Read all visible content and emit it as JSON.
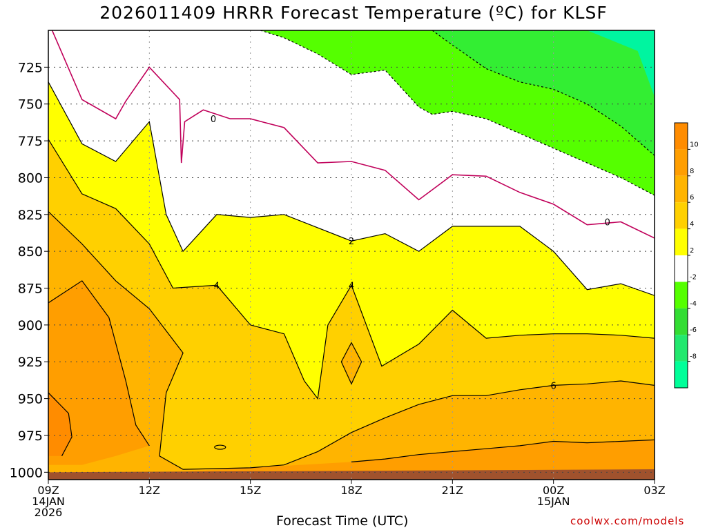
{
  "title": "2026011409 HRRR Forecast Temperature (ºC) for KLSF",
  "credit": "coolwx.com/models",
  "chart_data": {
    "type": "contour",
    "title": "2026011409 HRRR Forecast Temperature (ºC) for KLSF",
    "xlabel": "Forecast Time (UTC)",
    "ylabel": "",
    "x_range_hours": [
      0,
      18
    ],
    "y_range_hpa": [
      1005,
      700
    ],
    "y_ticks": [
      725,
      750,
      775,
      800,
      825,
      850,
      875,
      900,
      925,
      950,
      975,
      1000
    ],
    "x_ticks": [
      {
        "hour": 0,
        "lines": [
          "09Z",
          "14JAN",
          "2026"
        ]
      },
      {
        "hour": 3,
        "lines": [
          "12Z"
        ]
      },
      {
        "hour": 6,
        "lines": [
          "15Z"
        ]
      },
      {
        "hour": 9,
        "lines": [
          "18Z"
        ]
      },
      {
        "hour": 12,
        "lines": [
          "21Z"
        ]
      },
      {
        "hour": 15,
        "lines": [
          "00Z",
          "15JAN"
        ]
      },
      {
        "hour": 18,
        "lines": [
          "03Z"
        ]
      }
    ],
    "grid": true,
    "colorbar": {
      "labels": [
        10,
        8,
        6,
        4,
        2,
        -2,
        -4,
        -6,
        -8
      ],
      "colors": [
        "#ff8c00",
        "#ff9e00",
        "#ffb400",
        "#ffd000",
        "#ffff00",
        "#ffffff",
        "#55ff00",
        "#33dd33",
        "#22e86e",
        "#00ff99"
      ]
    },
    "contour_labels": [
      {
        "text": "0",
        "t": 4.9,
        "p": 760
      },
      {
        "text": "0",
        "t": 16.6,
        "p": 830
      },
      {
        "text": "2",
        "t": 9.0,
        "p": 843
      },
      {
        "text": "4",
        "t": 5.0,
        "p": 873
      },
      {
        "text": "4",
        "t": 9.0,
        "p": 873
      },
      {
        "text": "6",
        "t": 15.0,
        "p": 941
      }
    ],
    "isolines": {
      "zero": [
        [
          0,
          694
        ],
        [
          1,
          747
        ],
        [
          2,
          760
        ],
        [
          2.3,
          748
        ],
        [
          3,
          725
        ],
        [
          3.9,
          747
        ],
        [
          3.95,
          790
        ],
        [
          4.05,
          762
        ],
        [
          4.6,
          754
        ],
        [
          5.4,
          760
        ],
        [
          6,
          760
        ],
        [
          7,
          766
        ],
        [
          8,
          790
        ],
        [
          9,
          789
        ],
        [
          10,
          795
        ],
        [
          11,
          815
        ],
        [
          12,
          798
        ],
        [
          13,
          799
        ],
        [
          14,
          810
        ],
        [
          15,
          818
        ],
        [
          16,
          832
        ],
        [
          17,
          830
        ],
        [
          18,
          841
        ]
      ],
      "two": [
        [
          0,
          735
        ],
        [
          1,
          777
        ],
        [
          2,
          789
        ],
        [
          3,
          762
        ],
        [
          3.5,
          825
        ],
        [
          4,
          850
        ],
        [
          5,
          825
        ],
        [
          6,
          827
        ],
        [
          7,
          825
        ],
        [
          9,
          843
        ],
        [
          10,
          838
        ],
        [
          11,
          850
        ],
        [
          12,
          833
        ],
        [
          14,
          833
        ],
        [
          15,
          850
        ],
        [
          16,
          876
        ],
        [
          17,
          872
        ],
        [
          18,
          880
        ]
      ],
      "four": [
        [
          0,
          774
        ],
        [
          1,
          811
        ],
        [
          2,
          821
        ],
        [
          3,
          845
        ],
        [
          3.7,
          875
        ],
        [
          5,
          873
        ],
        [
          6,
          900
        ],
        [
          7,
          906
        ],
        [
          7.6,
          938
        ],
        [
          8,
          950
        ],
        [
          8.3,
          900
        ],
        [
          9,
          873
        ],
        [
          9.9,
          928
        ],
        [
          11,
          913
        ],
        [
          12,
          890
        ],
        [
          13,
          909
        ],
        [
          14,
          907
        ],
        [
          15,
          906
        ],
        [
          16,
          906
        ],
        [
          17,
          907
        ],
        [
          18,
          909
        ]
      ],
      "six": [
        [
          0,
          823
        ],
        [
          1,
          845
        ],
        [
          2,
          870
        ],
        [
          3,
          889
        ],
        [
          4,
          919
        ],
        [
          3.5,
          946
        ],
        [
          3.3,
          989
        ],
        [
          4,
          998
        ],
        [
          6,
          997
        ],
        [
          7,
          995
        ],
        [
          8,
          986
        ],
        [
          9,
          973
        ],
        [
          10,
          963
        ],
        [
          11,
          954
        ],
        [
          12,
          948
        ],
        [
          13,
          948
        ],
        [
          14,
          944
        ],
        [
          15,
          941
        ],
        [
          16,
          940
        ],
        [
          17,
          938
        ],
        [
          18,
          941
        ]
      ],
      "eight": [
        [
          0,
          885
        ],
        [
          1,
          870
        ],
        [
          1.8,
          895
        ],
        [
          2.3,
          938
        ],
        [
          2.6,
          968
        ],
        [
          3,
          982
        ],
        [
          2,
          989
        ],
        [
          1,
          995
        ],
        [
          0,
          995
        ]
      ],
      "ten": [
        [
          0,
          946
        ],
        [
          0.6,
          960
        ],
        [
          0.7,
          976
        ],
        [
          0.4,
          989
        ],
        [
          0,
          989
        ]
      ],
      "six_tail": [
        [
          9,
          993
        ],
        [
          10,
          991
        ],
        [
          11,
          988
        ],
        [
          12,
          986
        ],
        [
          13,
          984
        ],
        [
          14,
          982
        ],
        [
          15,
          979
        ],
        [
          16,
          980
        ],
        [
          17,
          979
        ],
        [
          18,
          978
        ]
      ],
      "neg_two": [
        [
          6.3,
          700
        ],
        [
          7,
          705
        ],
        [
          8,
          716
        ],
        [
          9,
          730
        ],
        [
          10,
          727
        ],
        [
          11,
          752
        ],
        [
          11.4,
          757
        ],
        [
          12,
          755
        ],
        [
          13,
          760
        ],
        [
          14,
          770
        ],
        [
          15,
          780
        ],
        [
          16,
          790
        ],
        [
          17,
          800
        ],
        [
          18,
          812
        ]
      ],
      "neg_four": [
        [
          11.4,
          700
        ],
        [
          12,
          710
        ],
        [
          13,
          726
        ],
        [
          14,
          735
        ],
        [
          15,
          740
        ],
        [
          16,
          750
        ],
        [
          17,
          765
        ],
        [
          18,
          785
        ]
      ],
      "ground_top_hpa": 1000
    }
  }
}
